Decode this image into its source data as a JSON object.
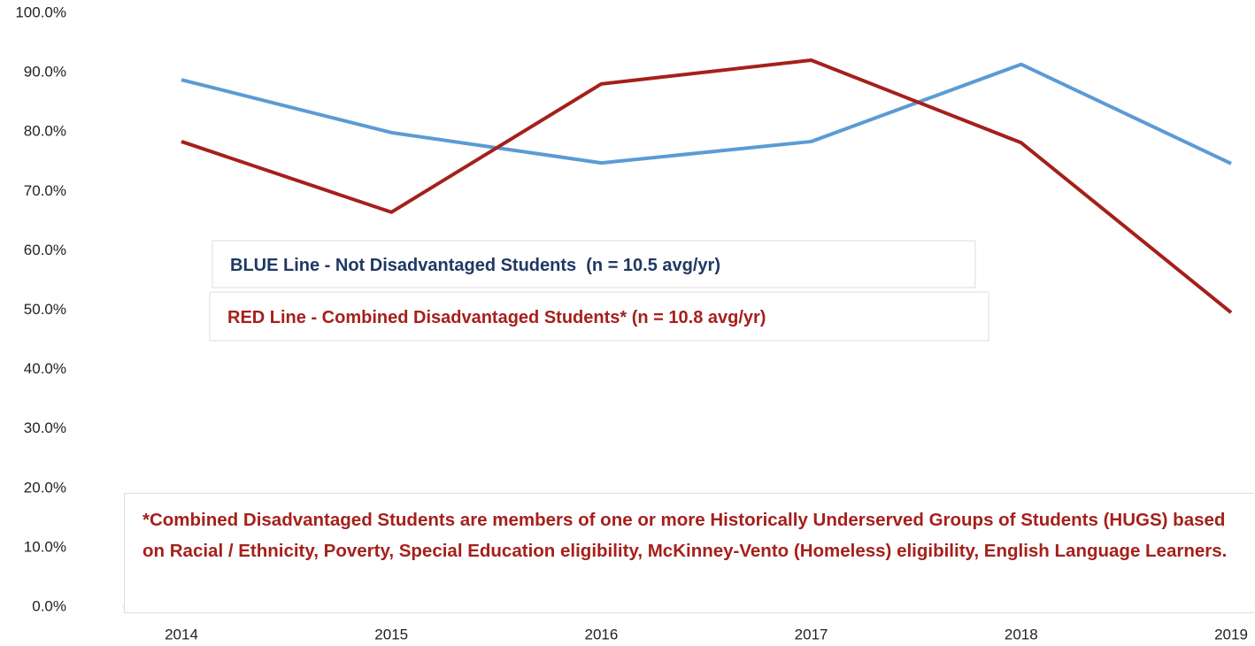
{
  "chart_data": {
    "type": "line",
    "categories": [
      "2014",
      "2015",
      "2016",
      "2017",
      "2018",
      "2019"
    ],
    "series": [
      {
        "name": "BLUE Line - Not Disadvantaged Students  (n = 10.5 avg/yr)",
        "color": "#5b9bd5",
        "text_color": "#1f3864",
        "values": [
          88.8,
          79.9,
          74.8,
          78.4,
          91.4,
          74.7
        ]
      },
      {
        "name": "RED Line - Combined Disadvantaged Students* (n = 10.8 avg/yr)",
        "color": "#a5201b",
        "text_color": "#a5201b",
        "values": [
          78.4,
          66.5,
          88.1,
          92.1,
          78.2,
          49.6
        ]
      }
    ],
    "ylim": [
      0,
      100
    ],
    "yticks": [
      {
        "value": 0,
        "label": "0.0%"
      },
      {
        "value": 10,
        "label": "10.0%"
      },
      {
        "value": 20,
        "label": "20.0%"
      },
      {
        "value": 30,
        "label": "30.0%"
      },
      {
        "value": 40,
        "label": "40.0%"
      },
      {
        "value": 50,
        "label": "50.0%"
      },
      {
        "value": 60,
        "label": "60.0%"
      },
      {
        "value": 70,
        "label": "70.0%"
      },
      {
        "value": 80,
        "label": "80.0%"
      },
      {
        "value": 90,
        "label": "90.0%"
      },
      {
        "value": 100,
        "label": "100.0%"
      }
    ],
    "grid": false,
    "annotations": [
      "*Combined Disadvantaged Students are members of one or more Historically Underserved Groups of Students (HUGS) based on Racial / Ethnicity, Poverty, Special Education eligibility, McKinney-Vento (Homeless) eligibility, English Language Learners."
    ]
  }
}
